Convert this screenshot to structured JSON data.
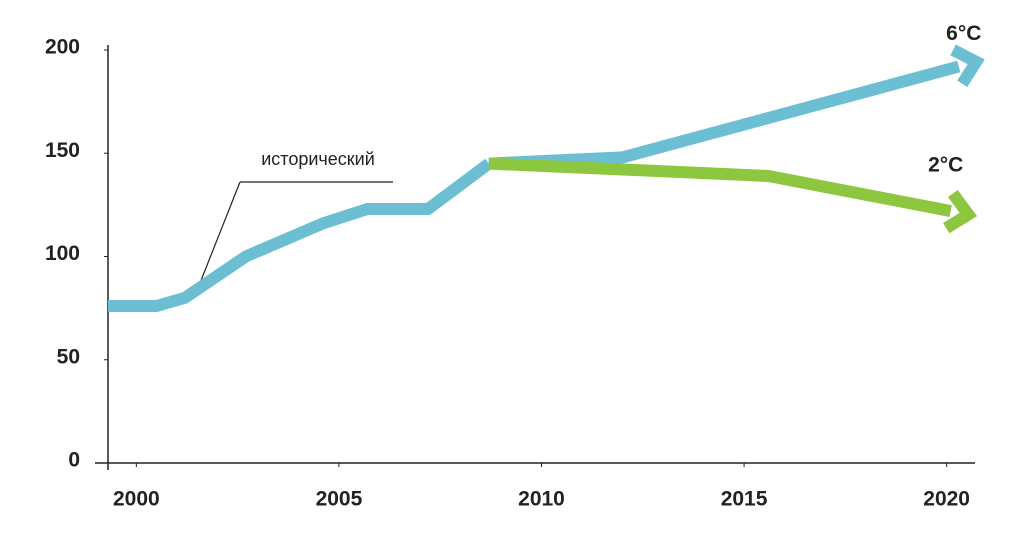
{
  "chart_data": {
    "type": "line",
    "annotation": "исторический",
    "series": [
      {
        "name": "исторический",
        "color": "#6cbfd3",
        "x": [
          1999.3,
          2000.5,
          2001.2,
          2002.7,
          2004.6,
          2005.7,
          2007.2,
          2008.7
        ],
        "values": [
          76,
          76,
          80,
          100,
          116,
          123,
          123,
          145
        ]
      },
      {
        "name": "6°C",
        "color": "#6cbfd3",
        "x": [
          2008.7,
          2012,
          2020.3
        ],
        "values": [
          145,
          148,
          192
        ]
      },
      {
        "name": "2°C",
        "color": "#8dc63f",
        "x": [
          2008.7,
          2015.6,
          2020.1
        ],
        "values": [
          145,
          139,
          122
        ]
      }
    ],
    "xlim": [
      1999.3,
      2020.7
    ],
    "xticks": [
      2000,
      2005,
      2010,
      2015,
      2020
    ],
    "ylim": [
      0,
      200
    ],
    "yticks": [
      0,
      50,
      100,
      150,
      200
    ]
  }
}
